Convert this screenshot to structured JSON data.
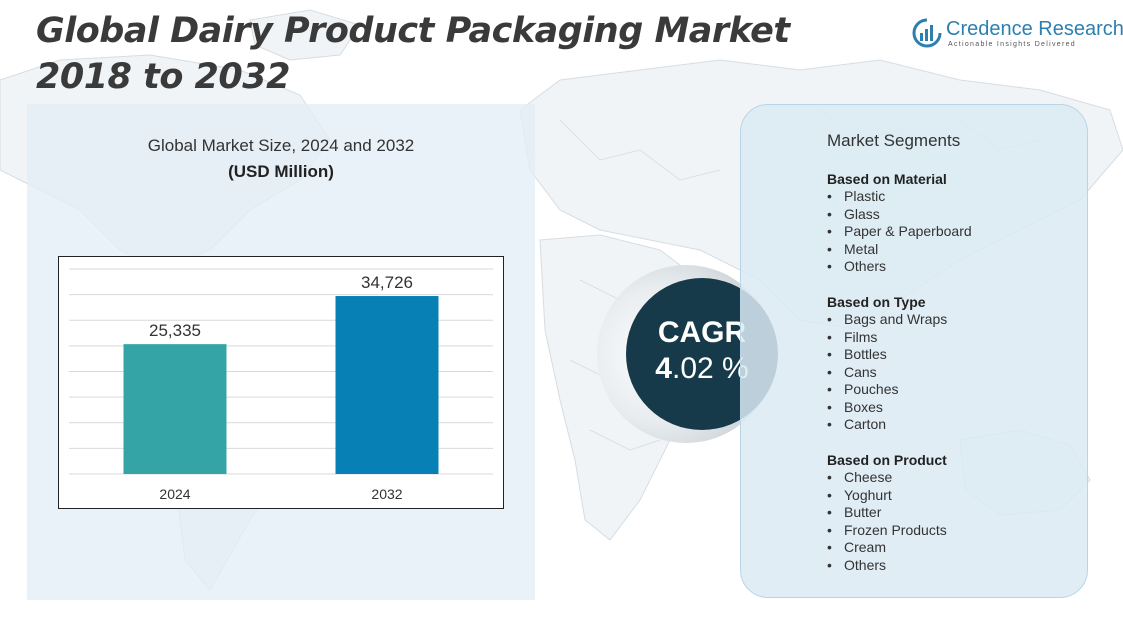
{
  "title": {
    "line1": "Global Dairy Product Packaging Market",
    "line2": "2018 to 2032"
  },
  "logo": {
    "name": "Credence Research",
    "tagline": "Actionable Insights Delivered",
    "icon": "bar-chart-logo-icon",
    "color": "#2d7fb0"
  },
  "chart_data": {
    "type": "bar",
    "title": "Global Market Size, 2024 and 2032",
    "unit_label": "(USD Million)",
    "categories": [
      "2024",
      "2032"
    ],
    "values": [
      25335,
      34726
    ],
    "value_labels": [
      "25,335",
      "34,726"
    ],
    "colors": [
      "#35a4a7",
      "#0780b5"
    ],
    "ylim": [
      0,
      40000
    ],
    "grid": true,
    "xlabel": "",
    "ylabel": ""
  },
  "cagr": {
    "label": "CAGR",
    "value_bold": "4",
    "value_rest": ".02 %"
  },
  "segments": {
    "heading": "Market Segments",
    "bullet": "•",
    "groups": [
      {
        "title": "Based on Material",
        "items": [
          "Plastic",
          "Glass",
          "Paper & Paperboard",
          "Metal",
          "Others"
        ]
      },
      {
        "title": "Based on Type",
        "items": [
          "Bags and Wraps",
          "Films",
          "Bottles",
          "Cans",
          "Pouches",
          "Boxes",
          "Carton"
        ]
      },
      {
        "title": "Based on Product",
        "items": [
          "Cheese",
          "Yoghurt",
          "Butter",
          "Frozen Products",
          "Cream",
          "Others"
        ]
      }
    ]
  }
}
